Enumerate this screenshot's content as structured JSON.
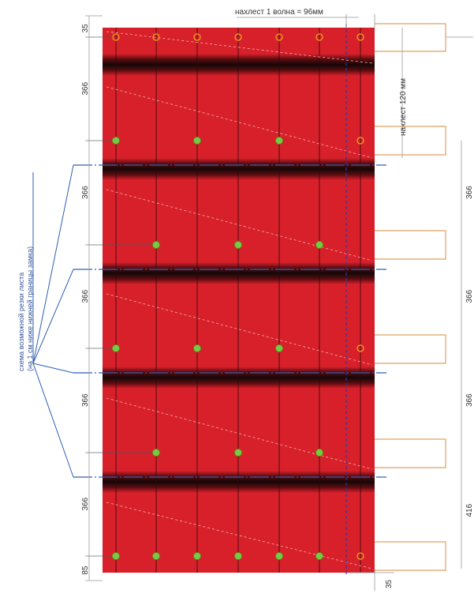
{
  "title": "нахлест 1 волна = 96мм",
  "overlap_label": "нахлест 120 мм",
  "cut_scheme_label": [
    "схема возможной резки листа",
    "(на 1 см ниже нижней границы замка)"
  ],
  "left_dimensions": [
    "35",
    "366",
    "366",
    "366",
    "366",
    "366",
    "85"
  ],
  "right_dimensions": [
    "366",
    "366",
    "366",
    "416"
  ],
  "bottom_dimension": "35",
  "colors": {
    "sheet": "#d8202a",
    "lock_band": "#1a1010",
    "fastener": "#7ac943",
    "fastener_open": "#e89020",
    "cut_line": "#2e5fb5",
    "bracket": "#e0a060",
    "dim_line": "#999999"
  },
  "fastener_rows": [
    {
      "pattern": "open-all"
    },
    {
      "pattern": "green-sparse",
      "last_open": true
    },
    {
      "pattern": "green-offset"
    },
    {
      "pattern": "green-sparse",
      "last_open": true
    },
    {
      "pattern": "green-offset"
    },
    {
      "pattern": "green-all",
      "last_open": true
    }
  ]
}
